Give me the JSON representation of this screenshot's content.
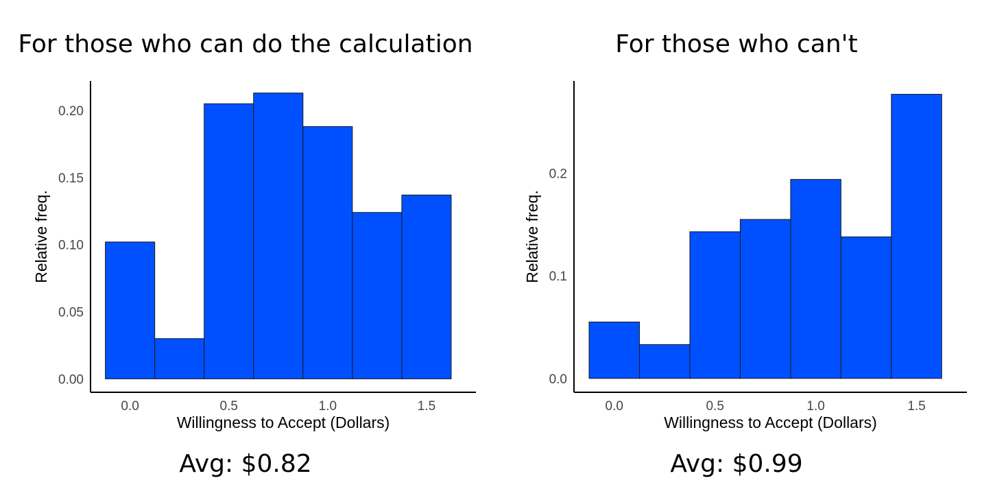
{
  "chart_data": [
    {
      "type": "bar",
      "title": "For those who can do the calculation",
      "xlabel": "Willingness to Accept (Dollars)",
      "ylabel": "Relative freq.",
      "bin_width": 0.25,
      "x": [
        0.0,
        0.25,
        0.5,
        0.75,
        1.0,
        1.25,
        1.5
      ],
      "values": [
        0.102,
        0.03,
        0.205,
        0.213,
        0.188,
        0.124,
        0.137
      ],
      "xlim": [
        -0.2,
        1.75
      ],
      "ylim": [
        -0.01,
        0.222
      ],
      "xticks": [
        0.0,
        0.5,
        1.0,
        1.5
      ],
      "xtick_labels": [
        "0.0",
        "0.5",
        "1.0",
        "1.5"
      ],
      "yticks": [
        0.0,
        0.05,
        0.1,
        0.15,
        0.2
      ],
      "ytick_labels": [
        "0.00",
        "0.05",
        "0.10",
        "0.15",
        "0.20"
      ],
      "annotation": "Avg: $0.82",
      "bar_color": "#0050ff",
      "grid": false
    },
    {
      "type": "bar",
      "title": "For those who can't",
      "xlabel": "Willingness to Accept (Dollars)",
      "ylabel": "Relative freq.",
      "bin_width": 0.25,
      "x": [
        0.0,
        0.25,
        0.5,
        0.75,
        1.0,
        1.25,
        1.5
      ],
      "values": [
        0.055,
        0.033,
        0.143,
        0.155,
        0.194,
        0.138,
        0.277
      ],
      "xlim": [
        -0.2,
        1.75
      ],
      "ylim": [
        -0.0135,
        0.29
      ],
      "xticks": [
        0.0,
        0.5,
        1.0,
        1.5
      ],
      "xtick_labels": [
        "0.0",
        "0.5",
        "1.0",
        "1.5"
      ],
      "yticks": [
        0.0,
        0.1,
        0.2
      ],
      "ytick_labels": [
        "0.0",
        "0.1",
        "0.2"
      ],
      "annotation": "Avg: $0.99",
      "bar_color": "#0050ff",
      "grid": false
    }
  ]
}
